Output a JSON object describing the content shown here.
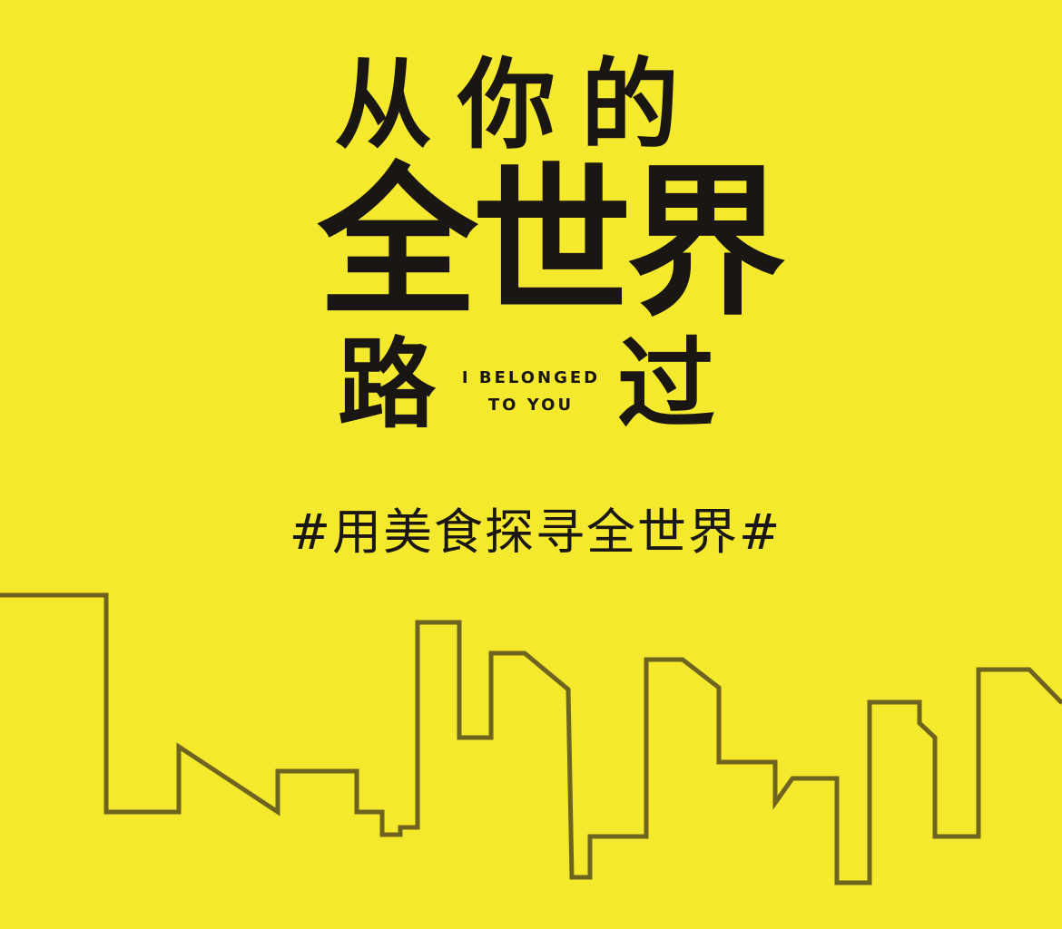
{
  "colors": {
    "background": "#F5E92E",
    "text": "#1A1614",
    "skyline_stroke": "#6E6420"
  },
  "title": {
    "line1": "从你的",
    "line2": "全世界",
    "line3_left": "路",
    "line3_right": "过",
    "english_line1": "I BELONGED",
    "english_line2": "TO YOU"
  },
  "tagline": "#用美食探寻全世界#",
  "decoration": {
    "skyline_icon": "city-skyline-outline-icon"
  }
}
